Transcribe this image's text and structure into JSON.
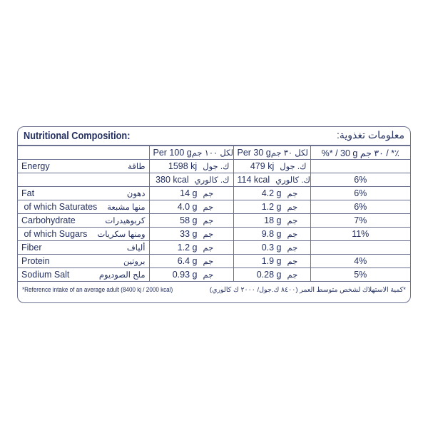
{
  "title_en": "Nutritional Composition:",
  "title_ar": "معلومات تغذوية:",
  "headers": {
    "per100_en": "Per 100 g",
    "per100_ar": "لكل ١٠٠ جم",
    "per30_en": "Per 30 g",
    "per30_ar": "لكل ٣٠ جم",
    "pct": "%* / 30 g ٣٠ جم / *٪"
  },
  "rows": [
    {
      "en": "Energy",
      "ar": "طاقة",
      "v100": "1598 kj",
      "u100": "ك. جول",
      "v30": "479 kj",
      "u30": "ك. جول",
      "pct": ""
    },
    {
      "en": "",
      "ar": "",
      "v100": "380 kcal",
      "u100": "ك. كالوري",
      "v30": "114 kcal",
      "u30": "ك. كالوري",
      "pct": "6%"
    },
    {
      "en": "Fat",
      "ar": "دهون",
      "v100": "14 g",
      "u100": "جم",
      "v30": "4.2 g",
      "u30": "جم",
      "pct": "6%"
    },
    {
      "en": " of which Saturates",
      "ar": "منها مشبعة",
      "v100": "4.0 g",
      "u100": "جم",
      "v30": "1.2 g",
      "u30": "جم",
      "pct": "6%"
    },
    {
      "en": "Carbohydrate",
      "ar": "كربوهيدرات",
      "v100": "58 g",
      "u100": "جم",
      "v30": "18 g",
      "u30": "جم",
      "pct": "7%"
    },
    {
      "en": " of which Sugars",
      "ar": "ومنها سكريات",
      "v100": "33 g",
      "u100": "جم",
      "v30": "9.8 g",
      "u30": "جم",
      "pct": "11%"
    },
    {
      "en": "Fiber",
      "ar": "ألياف",
      "v100": "1.2 g",
      "u100": "جم",
      "v30": "0.3 g",
      "u30": "جم",
      "pct": ""
    },
    {
      "en": "Protein",
      "ar": "بروتين",
      "v100": "6.4 g",
      "u100": "جم",
      "v30": "1.9 g",
      "u30": "جم",
      "pct": "4%"
    },
    {
      "en": "Sodium Salt",
      "ar": "ملح الصوديوم",
      "v100": "0.93 g",
      "u100": "جم",
      "v30": "0.28 g",
      "u30": "جم",
      "pct": "5%"
    }
  ],
  "footnote_en": "*Reference intake of an average adult (8400 kj / 2000 kcal)",
  "footnote_ar": "*كمية الاستهلاك لشخص متوسط العمر (٨٤٠٠ ك.جول/ ٢٠٠٠ ك كالوري)"
}
